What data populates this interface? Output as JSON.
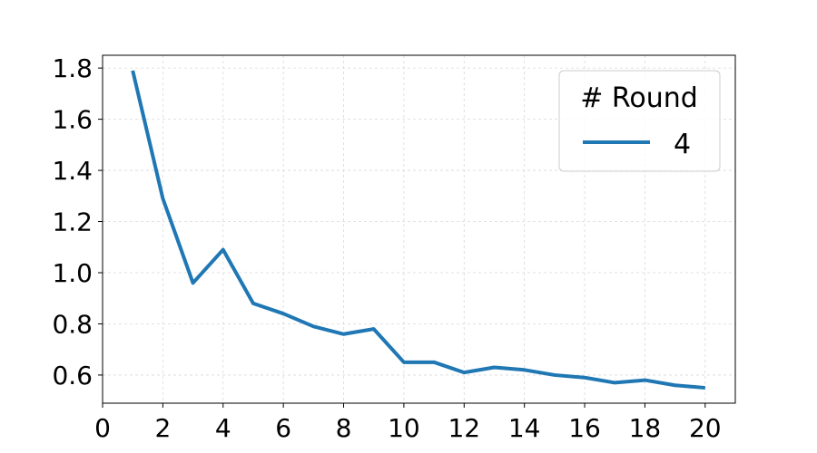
{
  "chart_data": {
    "type": "line",
    "title": "",
    "xlabel": "",
    "ylabel": "",
    "xlim": [
      0,
      21
    ],
    "ylim": [
      0.49,
      1.85
    ],
    "xticks": [
      0,
      2,
      4,
      6,
      8,
      10,
      12,
      14,
      16,
      18,
      20
    ],
    "yticks": [
      0.6,
      0.8,
      1.0,
      1.2,
      1.4,
      1.6,
      1.8
    ],
    "xtick_labels": [
      "0",
      "2",
      "4",
      "6",
      "8",
      "10",
      "12",
      "14",
      "16",
      "18",
      "20"
    ],
    "ytick_labels": [
      "0.6",
      "0.8",
      "1.0",
      "1.2",
      "1.4",
      "1.6",
      "1.8"
    ],
    "grid": true,
    "legend": {
      "title": "# Round",
      "placement": "top-right"
    },
    "series": [
      {
        "name": "4",
        "color": "#1f77b4",
        "x": [
          1,
          2,
          3,
          4,
          5,
          6,
          7,
          8,
          9,
          10,
          11,
          12,
          13,
          14,
          15,
          16,
          17,
          18,
          19,
          20
        ],
        "y": [
          1.79,
          1.29,
          0.96,
          1.09,
          0.88,
          0.84,
          0.79,
          0.76,
          0.78,
          0.65,
          0.65,
          0.61,
          0.63,
          0.62,
          0.6,
          0.59,
          0.57,
          0.58,
          0.56,
          0.55
        ]
      }
    ]
  }
}
